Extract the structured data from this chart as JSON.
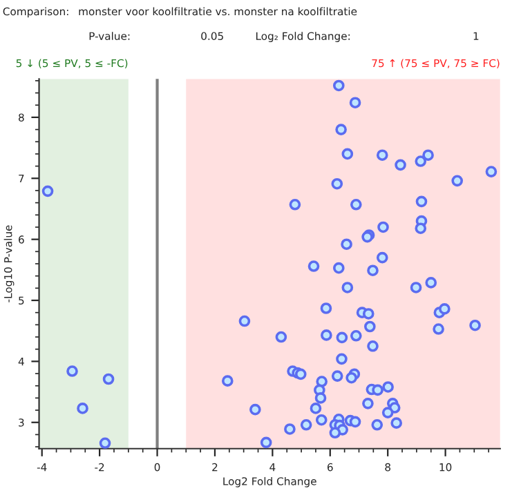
{
  "chart_data": {
    "type": "scatter",
    "xlabel": "Log2 Fold Change",
    "ylabel": "-Log10 P-value",
    "annotations": [
      "Comparison:",
      "monster voor koolfiltratie vs. monster na koolfiltratie",
      "P-value:",
      "0.05",
      "Log₂ Fold Change:",
      "1",
      "5 ↓ (5 ≤ PV, 5 ≤ -FC)",
      "75 ↑ (75 ≤ PV, 75 ≥ FC)"
    ],
    "xlim": [
      -4.1,
      11.9
    ],
    "ylim": [
      2.57,
      8.63
    ],
    "xticks": [
      -4,
      -2,
      0,
      2,
      4,
      6,
      8,
      10
    ],
    "yticks": [
      3,
      4,
      5,
      6,
      7,
      8
    ],
    "grid": false,
    "legend": false,
    "marker": "circle",
    "ref_lines": [
      {
        "axis": "x",
        "value": 0,
        "color": "#7f7f7f"
      }
    ],
    "bands": [
      {
        "axis": "x",
        "from": -4.1,
        "to": -1,
        "color": "#e2f0e0"
      },
      {
        "axis": "x",
        "from": 1,
        "to": 11.9,
        "color": "#ffe0e0"
      }
    ],
    "series": [
      {
        "color": "#5b6cf0",
        "x": [
          -3.8,
          -2.95,
          -1.69,
          -2.59,
          -1.81
        ],
        "values": [
          6.79,
          3.84,
          3.71,
          3.23,
          2.66
        ]
      },
      {
        "color": "#5b6cf0",
        "x": [
          3.03,
          2.44,
          3.4,
          6.3,
          6.87,
          6.38,
          6.6,
          7.81,
          8.44,
          9.14,
          9.4,
          11.59,
          10.41,
          6.24,
          4.78,
          6.9,
          9.17,
          9.17,
          9.14,
          7.84,
          7.35,
          7.29,
          6.57,
          7.81,
          5.43,
          6.3,
          7.48,
          6.6,
          8.98,
          9.5,
          5.86,
          7.11,
          7.33,
          9.79,
          9.97,
          7.38,
          9.76,
          11.03,
          4.3,
          5.87,
          6.41,
          6.9,
          7.48,
          6.4,
          4.7,
          4.87,
          4.98,
          6.25,
          6.84,
          6.74,
          5.71,
          8.01,
          7.44,
          7.65,
          5.63,
          5.67,
          7.31,
          8.17,
          8.24,
          5.5,
          8.0,
          5.7,
          6.7,
          6.87,
          6.3,
          6.17,
          6.33,
          7.63,
          8.3,
          5.17,
          4.6,
          6.43,
          6.17,
          3.78
        ],
        "values": [
          4.66,
          3.68,
          3.21,
          8.52,
          8.24,
          7.8,
          7.4,
          7.38,
          7.22,
          7.28,
          7.38,
          7.11,
          6.96,
          6.91,
          6.57,
          6.57,
          6.62,
          6.3,
          6.18,
          6.2,
          6.07,
          6.04,
          5.92,
          5.7,
          5.56,
          5.53,
          5.49,
          5.21,
          5.21,
          5.29,
          4.87,
          4.8,
          4.78,
          4.8,
          4.86,
          4.57,
          4.53,
          4.59,
          4.4,
          4.43,
          4.39,
          4.42,
          4.25,
          4.04,
          3.84,
          3.81,
          3.79,
          3.76,
          3.79,
          3.73,
          3.67,
          3.58,
          3.54,
          3.53,
          3.53,
          3.4,
          3.31,
          3.31,
          3.24,
          3.23,
          3.16,
          3.04,
          3.03,
          3.01,
          3.05,
          2.96,
          2.95,
          2.96,
          2.99,
          2.96,
          2.89,
          2.88,
          2.83,
          2.67
        ]
      }
    ]
  }
}
